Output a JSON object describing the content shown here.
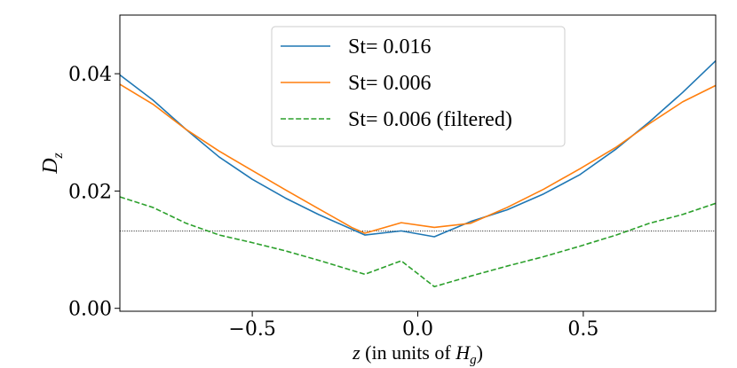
{
  "chart_data": {
    "type": "line",
    "title": "",
    "xlabel_italic": "z",
    "xlabel_mid": " (in units of ",
    "xlabel_H": "H",
    "xlabel_sub": "g",
    "xlabel_end": ")",
    "ylabel_main": "D",
    "ylabel_sub": "z",
    "xlim": [
      -0.9,
      0.9
    ],
    "ylim": [
      -0.0005,
      0.05
    ],
    "xticks": [
      -0.5,
      0.0,
      0.5
    ],
    "xtick_labels": [
      "−0.5",
      "0.0",
      "0.5"
    ],
    "yticks": [
      0.0,
      0.02,
      0.04
    ],
    "ytick_labels": [
      "0.00",
      "0.02",
      "0.04"
    ],
    "reference_line": {
      "y": 0.0132,
      "color": "#000000",
      "style": "dotted"
    },
    "legend_position": "top-center",
    "series": [
      {
        "name": "St= 0.016",
        "legend_prefix": "St= ",
        "legend_value": "0.016",
        "color": "#1f77b4",
        "dash": "solid",
        "x": [
          -0.9,
          -0.8,
          -0.7,
          -0.6,
          -0.5,
          -0.4,
          -0.3,
          -0.2,
          -0.16,
          -0.05,
          0.05,
          0.16,
          0.27,
          0.38,
          0.49,
          0.6,
          0.7,
          0.8,
          0.9
        ],
        "values": [
          0.0398,
          0.0355,
          0.0305,
          0.0258,
          0.022,
          0.0188,
          0.016,
          0.0135,
          0.0125,
          0.0132,
          0.0122,
          0.0148,
          0.0168,
          0.0195,
          0.0228,
          0.0272,
          0.0318,
          0.0368,
          0.0422
        ]
      },
      {
        "name": "St= 0.006",
        "legend_prefix": "St= ",
        "legend_value": "0.006",
        "color": "#ff7f0e",
        "dash": "solid",
        "x": [
          -0.9,
          -0.8,
          -0.7,
          -0.6,
          -0.5,
          -0.4,
          -0.3,
          -0.2,
          -0.16,
          -0.05,
          0.05,
          0.16,
          0.27,
          0.38,
          0.49,
          0.6,
          0.7,
          0.8,
          0.9
        ],
        "values": [
          0.0382,
          0.0348,
          0.0305,
          0.0268,
          0.0235,
          0.0202,
          0.017,
          0.0138,
          0.0128,
          0.0146,
          0.0138,
          0.0145,
          0.0172,
          0.0203,
          0.0238,
          0.0275,
          0.0315,
          0.0352,
          0.038
        ]
      },
      {
        "name": "St= 0.006 (filtered)",
        "legend_prefix": "St= ",
        "legend_value": "0.006 (filtered)",
        "color": "#2ca02c",
        "dash": "dashed",
        "x": [
          -0.9,
          -0.8,
          -0.7,
          -0.6,
          -0.5,
          -0.4,
          -0.3,
          -0.16,
          -0.05,
          0.05,
          0.16,
          0.27,
          0.38,
          0.49,
          0.6,
          0.7,
          0.8,
          0.9
        ],
        "values": [
          0.019,
          0.0172,
          0.0145,
          0.0125,
          0.0112,
          0.0098,
          0.0082,
          0.0058,
          0.0081,
          0.0037,
          0.0055,
          0.0072,
          0.0088,
          0.0106,
          0.0125,
          0.0145,
          0.016,
          0.0179
        ]
      }
    ]
  }
}
